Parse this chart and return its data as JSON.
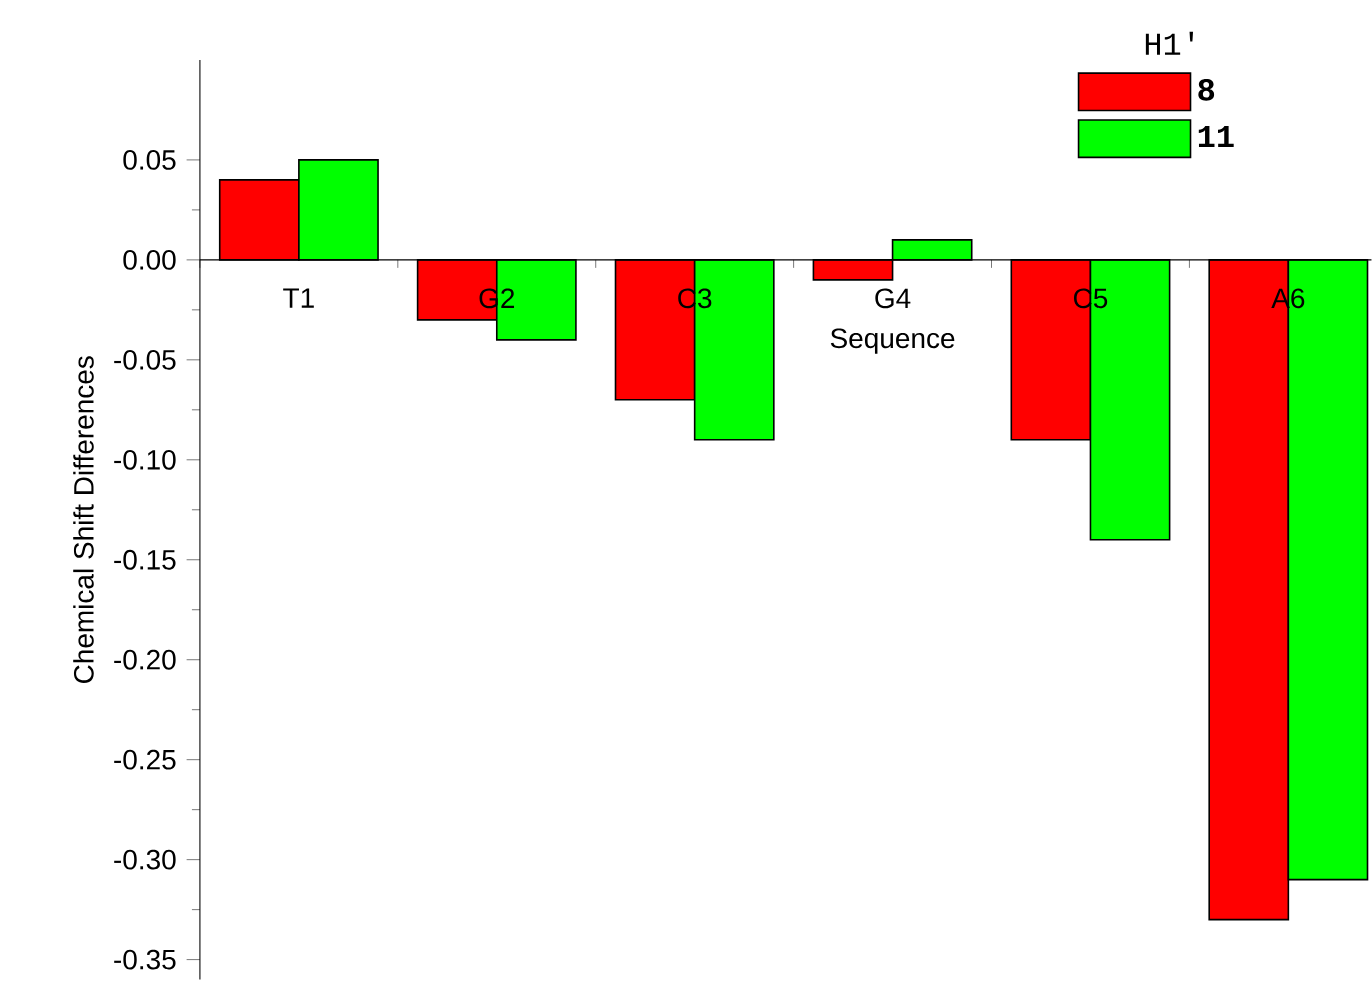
{
  "chart_data": {
    "type": "bar",
    "xlabel": "Sequence",
    "ylabel": "Chemical Shift Differences",
    "legend_title": "H1'",
    "legend": "top right",
    "categories": [
      "T1",
      "G2",
      "C3",
      "G4",
      "C5",
      "A6"
    ],
    "series": [
      {
        "name": "8",
        "color": "#ff0000",
        "values": [
          0.04,
          -0.03,
          -0.07,
          -0.01,
          -0.09,
          -0.33
        ]
      },
      {
        "name": "11",
        "color": "#00ff00",
        "values": [
          0.05,
          -0.04,
          -0.09,
          0.01,
          -0.14,
          -0.31
        ]
      }
    ],
    "ylim": [
      -0.36,
      0.1
    ],
    "yticks": [
      {
        "value": -0.35,
        "label": "-0.35"
      },
      {
        "value": -0.3,
        "label": "-0.30"
      },
      {
        "value": -0.25,
        "label": "-0.25"
      },
      {
        "value": -0.2,
        "label": "-0.20"
      },
      {
        "value": -0.15,
        "label": "-0.15"
      },
      {
        "value": -0.1,
        "label": "-0.10"
      },
      {
        "value": -0.05,
        "label": "-0.05"
      },
      {
        "value": 0,
        "label": "0.00"
      },
      {
        "value": 0.05,
        "label": "0.05"
      }
    ]
  }
}
